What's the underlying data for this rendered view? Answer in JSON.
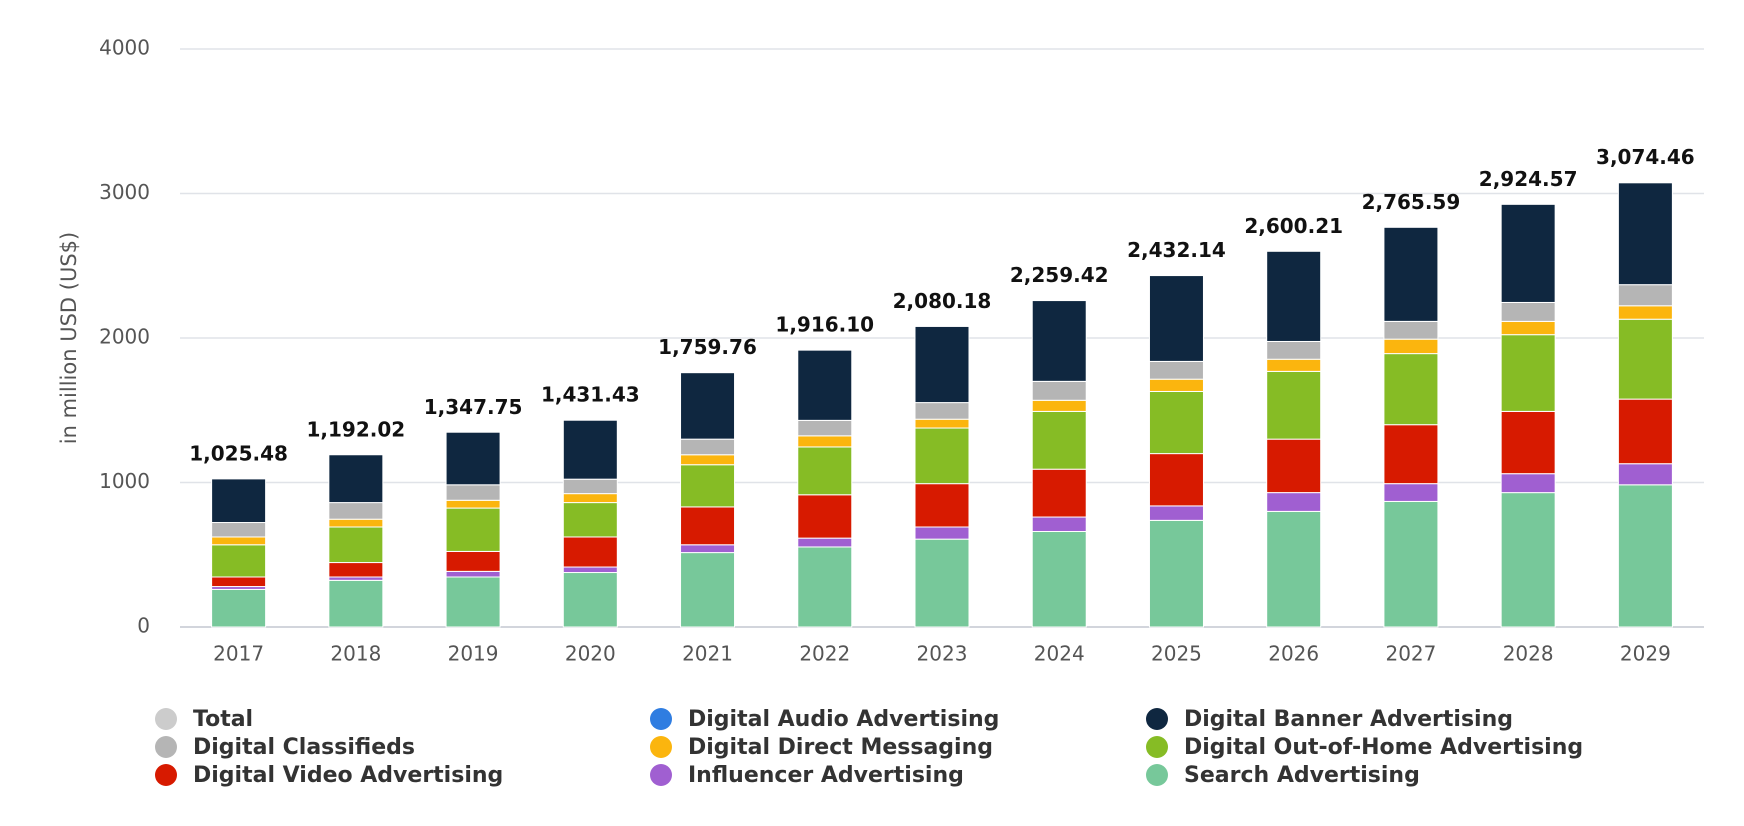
{
  "chart_data": {
    "type": "bar",
    "stacked": true,
    "y_label": "in million USD (US$)",
    "categories": [
      "2017",
      "2018",
      "2019",
      "2020",
      "2021",
      "2022",
      "2023",
      "2024",
      "2025",
      "2026",
      "2027",
      "2028",
      "2029"
    ],
    "ylim": [
      0,
      4000
    ],
    "yticks": [
      0,
      1000,
      2000,
      3000,
      4000
    ],
    "grid": true,
    "series": [
      {
        "name": "Total",
        "color": "#cccccc",
        "hidden": true,
        "values": [
          1025.48,
          1192.02,
          1347.75,
          1431.43,
          1759.76,
          1916.1,
          2080.18,
          2259.42,
          2432.14,
          2600.21,
          2765.59,
          2924.57,
          3074.46
        ],
        "value_labels": [
          "1,025.48",
          "1,192.02",
          "1,347.75",
          "1,431.43",
          "1,759.76",
          "1,916.10",
          "2,080.18",
          "2,259.42",
          "2,432.14",
          "2,600.21",
          "2,765.59",
          "2,924.57",
          "3,074.46"
        ]
      },
      {
        "name": "Digital Audio Advertising",
        "color": "#2f7de1",
        "values": [
          0,
          0,
          0,
          0,
          0,
          0,
          0,
          0,
          0,
          0,
          0,
          0,
          0
        ]
      },
      {
        "name": "Digital Banner Advertising",
        "color": "#0f2740",
        "values": [
          302,
          331,
          364,
          408,
          460,
          486,
          527,
          559,
          594,
          624,
          651,
          679,
          705
        ]
      },
      {
        "name": "Digital Classifieds",
        "color": "#b5b5b5",
        "values": [
          100,
          115,
          107,
          100,
          108,
          107,
          115,
          131,
          123,
          123,
          123,
          131,
          146
        ]
      },
      {
        "name": "Digital Direct Messaging",
        "color": "#fbb50e",
        "values": [
          54,
          54,
          54,
          62,
          69,
          77,
          61,
          77,
          85,
          84,
          100,
          92,
          93
        ]
      },
      {
        "name": "Digital Out-of-Home Advertising",
        "color": "#86bc25",
        "values": [
          223,
          246,
          300,
          238,
          292,
          331,
          385,
          400,
          430,
          469,
          492,
          531,
          553
        ]
      },
      {
        "name": "Digital Video Advertising",
        "color": "#d71a00",
        "values": [
          66,
          100,
          138,
          208,
          262,
          300,
          300,
          331,
          362,
          370,
          408,
          431,
          447
        ]
      },
      {
        "name": "Influencer Advertising",
        "color": "#a05fd1",
        "values": [
          20,
          23,
          39,
          38,
          54,
          61,
          84,
          100,
          100,
          130,
          123,
          131,
          146
        ]
      },
      {
        "name": "Search Advertising",
        "color": "#77c89a",
        "values": [
          260,
          323,
          346,
          377,
          515,
          554,
          608,
          661,
          738,
          800,
          869,
          930,
          984
        ]
      }
    ]
  }
}
